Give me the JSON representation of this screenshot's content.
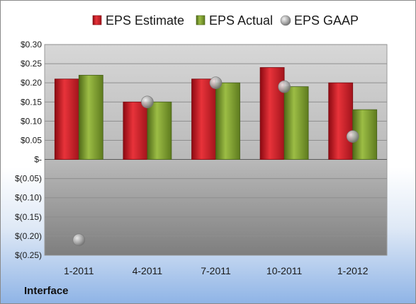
{
  "chart_data": {
    "type": "bar",
    "categories": [
      "1-2011",
      "4-2011",
      "7-2011",
      "10-2011",
      "1-2012"
    ],
    "series": [
      {
        "name": "EPS Estimate",
        "kind": "bar",
        "color": "#c8102e",
        "values": [
          0.21,
          0.15,
          0.21,
          0.24,
          0.2
        ]
      },
      {
        "name": "EPS Actual",
        "kind": "bar",
        "color": "#7a9a2a",
        "values": [
          0.22,
          0.15,
          0.2,
          0.19,
          0.13
        ]
      },
      {
        "name": "EPS GAAP",
        "kind": "marker",
        "color": "#b0b0b0",
        "values": [
          -0.21,
          0.15,
          0.2,
          0.19,
          0.06
        ]
      }
    ],
    "ylim": [
      -0.25,
      0.3
    ],
    "yticks": [
      {
        "value": 0.3,
        "label": "$0.30"
      },
      {
        "value": 0.25,
        "label": "$0.25"
      },
      {
        "value": 0.2,
        "label": "$0.20"
      },
      {
        "value": 0.15,
        "label": "$0.15"
      },
      {
        "value": 0.1,
        "label": "$0.10"
      },
      {
        "value": 0.05,
        "label": "$0.05"
      },
      {
        "value": 0.0,
        "label": "$-"
      },
      {
        "value": -0.05,
        "label": "$(0.05)"
      },
      {
        "value": -0.1,
        "label": "$(0.10)"
      },
      {
        "value": -0.15,
        "label": "$(0.15)"
      },
      {
        "value": -0.2,
        "label": "$(0.20)"
      },
      {
        "value": -0.25,
        "label": "$(0.25)"
      }
    ],
    "grid": true,
    "legend_position": "top"
  },
  "company": "Interface"
}
